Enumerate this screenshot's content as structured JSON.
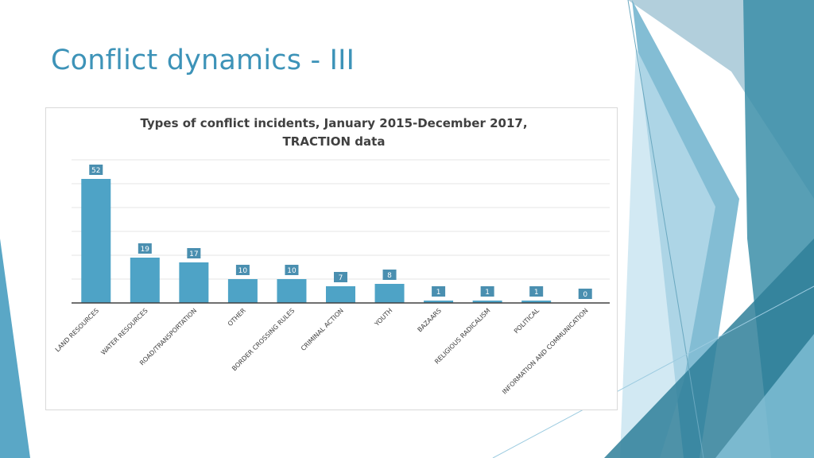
{
  "slide": {
    "title": "Conflict dynamics - III"
  },
  "colors": {
    "accent": "#3d93b8",
    "bar": "#4ea3c6",
    "label_bg": "#4a8fb0",
    "deco_dark": "#2e6f8c",
    "deco_mid": "#4a98b8",
    "deco_light": "#a9d6ea"
  },
  "chart_data": {
    "type": "bar",
    "title": "Types of conflict incidents, January 2015-December 2017, TRACTION data",
    "categories": [
      "LAND RESOURCES",
      "WATER RESOURCES",
      "ROAD/TRANSPORTATION",
      "OTHER",
      "BORDER CROSSING RULES",
      "CRIMINAL ACTION",
      "YOUTH",
      "BAZAARS",
      "RELIGIOUS RADICALISM",
      "POLITICAL",
      "INFORMATION AND COMMUNICATION"
    ],
    "values": [
      52,
      19,
      17,
      10,
      10,
      7,
      8,
      1,
      1,
      1,
      0
    ],
    "ylim": [
      0,
      60
    ],
    "grid": true,
    "legend": "none",
    "data_labels": true
  }
}
